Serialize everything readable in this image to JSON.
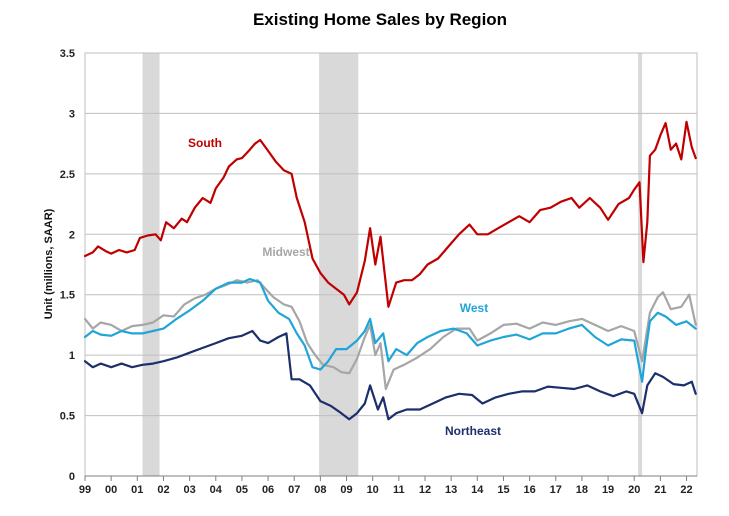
{
  "chart_data": {
    "type": "line",
    "title": "Existing Home Sales by Region",
    "xlabel": "",
    "ylabel": "Unit (millions, SAAR)",
    "ylim": [
      0,
      3.5
    ],
    "xlim": [
      1999.0,
      2022.4
    ],
    "yticks": [
      "0",
      "0.5",
      "1",
      "1.5",
      "2",
      "2.5",
      "3",
      "3.5"
    ],
    "xticks": [
      "99",
      "00",
      "01",
      "02",
      "03",
      "04",
      "05",
      "06",
      "07",
      "08",
      "09",
      "10",
      "11",
      "12",
      "13",
      "14",
      "15",
      "16",
      "17",
      "18",
      "19",
      "20",
      "21",
      "22"
    ],
    "grid": "horizontal",
    "legend": "inline labels",
    "recessions": [
      [
        2001.2,
        2001.85
      ],
      [
        2007.95,
        2009.45
      ],
      [
        2020.15,
        2020.3
      ]
    ],
    "series": [
      {
        "name": "South",
        "color": "#c00000",
        "points": [
          [
            1999.0,
            1.82
          ],
          [
            1999.3,
            1.85
          ],
          [
            1999.5,
            1.9
          ],
          [
            1999.8,
            1.86
          ],
          [
            2000.0,
            1.84
          ],
          [
            2000.3,
            1.87
          ],
          [
            2000.6,
            1.85
          ],
          [
            2000.9,
            1.87
          ],
          [
            2001.1,
            1.97
          ],
          [
            2001.4,
            1.99
          ],
          [
            2001.7,
            2.0
          ],
          [
            2001.9,
            1.95
          ],
          [
            2002.1,
            2.1
          ],
          [
            2002.4,
            2.05
          ],
          [
            2002.7,
            2.13
          ],
          [
            2002.9,
            2.1
          ],
          [
            2003.2,
            2.22
          ],
          [
            2003.5,
            2.3
          ],
          [
            2003.8,
            2.26
          ],
          [
            2004.0,
            2.38
          ],
          [
            2004.3,
            2.47
          ],
          [
            2004.5,
            2.56
          ],
          [
            2004.8,
            2.62
          ],
          [
            2005.0,
            2.63
          ],
          [
            2005.3,
            2.7
          ],
          [
            2005.5,
            2.75
          ],
          [
            2005.7,
            2.78
          ],
          [
            2006.0,
            2.69
          ],
          [
            2006.3,
            2.6
          ],
          [
            2006.6,
            2.53
          ],
          [
            2006.9,
            2.5
          ],
          [
            2007.1,
            2.3
          ],
          [
            2007.4,
            2.1
          ],
          [
            2007.7,
            1.8
          ],
          [
            2008.0,
            1.68
          ],
          [
            2008.3,
            1.6
          ],
          [
            2008.6,
            1.55
          ],
          [
            2008.9,
            1.5
          ],
          [
            2009.1,
            1.42
          ],
          [
            2009.4,
            1.52
          ],
          [
            2009.7,
            1.78
          ],
          [
            2009.9,
            2.05
          ],
          [
            2010.1,
            1.75
          ],
          [
            2010.3,
            1.98
          ],
          [
            2010.6,
            1.4
          ],
          [
            2010.9,
            1.6
          ],
          [
            2011.2,
            1.62
          ],
          [
            2011.5,
            1.62
          ],
          [
            2011.8,
            1.67
          ],
          [
            2012.1,
            1.75
          ],
          [
            2012.5,
            1.8
          ],
          [
            2012.9,
            1.9
          ],
          [
            2013.3,
            2.0
          ],
          [
            2013.7,
            2.08
          ],
          [
            2014.0,
            2.0
          ],
          [
            2014.4,
            2.0
          ],
          [
            2014.8,
            2.05
          ],
          [
            2015.2,
            2.1
          ],
          [
            2015.6,
            2.15
          ],
          [
            2016.0,
            2.1
          ],
          [
            2016.4,
            2.2
          ],
          [
            2016.8,
            2.22
          ],
          [
            2017.2,
            2.27
          ],
          [
            2017.6,
            2.3
          ],
          [
            2017.9,
            2.22
          ],
          [
            2018.3,
            2.3
          ],
          [
            2018.7,
            2.22
          ],
          [
            2019.0,
            2.12
          ],
          [
            2019.4,
            2.25
          ],
          [
            2019.8,
            2.3
          ],
          [
            2020.0,
            2.37
          ],
          [
            2020.2,
            2.43
          ],
          [
            2020.35,
            1.77
          ],
          [
            2020.5,
            2.1
          ],
          [
            2020.6,
            2.65
          ],
          [
            2020.8,
            2.7
          ],
          [
            2021.0,
            2.82
          ],
          [
            2021.2,
            2.92
          ],
          [
            2021.4,
            2.7
          ],
          [
            2021.6,
            2.75
          ],
          [
            2021.8,
            2.62
          ],
          [
            2022.0,
            2.93
          ],
          [
            2022.2,
            2.72
          ],
          [
            2022.35,
            2.63
          ]
        ]
      },
      {
        "name": "Midwest",
        "color": "#a6a6a6",
        "points": [
          [
            1999.0,
            1.3
          ],
          [
            1999.3,
            1.22
          ],
          [
            1999.6,
            1.27
          ],
          [
            2000.0,
            1.25
          ],
          [
            2000.4,
            1.2
          ],
          [
            2000.8,
            1.24
          ],
          [
            2001.2,
            1.25
          ],
          [
            2001.6,
            1.27
          ],
          [
            2002.0,
            1.33
          ],
          [
            2002.4,
            1.32
          ],
          [
            2002.8,
            1.42
          ],
          [
            2003.2,
            1.47
          ],
          [
            2003.6,
            1.5
          ],
          [
            2004.0,
            1.55
          ],
          [
            2004.4,
            1.58
          ],
          [
            2004.8,
            1.62
          ],
          [
            2005.2,
            1.6
          ],
          [
            2005.6,
            1.62
          ],
          [
            2005.9,
            1.55
          ],
          [
            2006.2,
            1.48
          ],
          [
            2006.6,
            1.42
          ],
          [
            2006.9,
            1.4
          ],
          [
            2007.2,
            1.28
          ],
          [
            2007.5,
            1.1
          ],
          [
            2007.8,
            1.0
          ],
          [
            2008.1,
            0.92
          ],
          [
            2008.5,
            0.9
          ],
          [
            2008.8,
            0.86
          ],
          [
            2009.1,
            0.85
          ],
          [
            2009.4,
            0.97
          ],
          [
            2009.7,
            1.15
          ],
          [
            2009.9,
            1.25
          ],
          [
            2010.1,
            1.0
          ],
          [
            2010.3,
            1.1
          ],
          [
            2010.5,
            0.72
          ],
          [
            2010.8,
            0.88
          ],
          [
            2011.2,
            0.92
          ],
          [
            2011.7,
            0.98
          ],
          [
            2012.2,
            1.05
          ],
          [
            2012.7,
            1.15
          ],
          [
            2013.2,
            1.22
          ],
          [
            2013.7,
            1.22
          ],
          [
            2014.0,
            1.12
          ],
          [
            2014.5,
            1.18
          ],
          [
            2015.0,
            1.25
          ],
          [
            2015.5,
            1.26
          ],
          [
            2016.0,
            1.22
          ],
          [
            2016.5,
            1.27
          ],
          [
            2017.0,
            1.25
          ],
          [
            2017.5,
            1.28
          ],
          [
            2018.0,
            1.3
          ],
          [
            2018.5,
            1.25
          ],
          [
            2019.0,
            1.2
          ],
          [
            2019.5,
            1.24
          ],
          [
            2020.0,
            1.2
          ],
          [
            2020.3,
            0.95
          ],
          [
            2020.45,
            1.15
          ],
          [
            2020.6,
            1.35
          ],
          [
            2020.9,
            1.48
          ],
          [
            2021.1,
            1.52
          ],
          [
            2021.4,
            1.38
          ],
          [
            2021.8,
            1.4
          ],
          [
            2022.1,
            1.5
          ],
          [
            2022.35,
            1.25
          ]
        ]
      },
      {
        "name": "West",
        "color": "#1fa5d8",
        "points": [
          [
            1999.0,
            1.15
          ],
          [
            1999.3,
            1.2
          ],
          [
            1999.6,
            1.17
          ],
          [
            2000.0,
            1.16
          ],
          [
            2000.4,
            1.2
          ],
          [
            2000.8,
            1.18
          ],
          [
            2001.2,
            1.18
          ],
          [
            2001.6,
            1.2
          ],
          [
            2002.0,
            1.22
          ],
          [
            2002.5,
            1.3
          ],
          [
            2003.0,
            1.37
          ],
          [
            2003.5,
            1.45
          ],
          [
            2004.0,
            1.55
          ],
          [
            2004.5,
            1.6
          ],
          [
            2005.0,
            1.6
          ],
          [
            2005.3,
            1.63
          ],
          [
            2005.7,
            1.6
          ],
          [
            2006.0,
            1.45
          ],
          [
            2006.4,
            1.35
          ],
          [
            2006.8,
            1.3
          ],
          [
            2007.1,
            1.18
          ],
          [
            2007.4,
            1.08
          ],
          [
            2007.7,
            0.9
          ],
          [
            2008.0,
            0.88
          ],
          [
            2008.3,
            0.95
          ],
          [
            2008.6,
            1.05
          ],
          [
            2009.0,
            1.05
          ],
          [
            2009.4,
            1.12
          ],
          [
            2009.7,
            1.2
          ],
          [
            2009.9,
            1.3
          ],
          [
            2010.1,
            1.1
          ],
          [
            2010.4,
            1.18
          ],
          [
            2010.6,
            0.95
          ],
          [
            2010.9,
            1.05
          ],
          [
            2011.3,
            1.0
          ],
          [
            2011.7,
            1.1
          ],
          [
            2012.1,
            1.15
          ],
          [
            2012.6,
            1.2
          ],
          [
            2013.1,
            1.22
          ],
          [
            2013.6,
            1.18
          ],
          [
            2014.0,
            1.08
          ],
          [
            2014.5,
            1.12
          ],
          [
            2015.0,
            1.15
          ],
          [
            2015.5,
            1.17
          ],
          [
            2016.0,
            1.13
          ],
          [
            2016.5,
            1.18
          ],
          [
            2017.0,
            1.18
          ],
          [
            2017.5,
            1.22
          ],
          [
            2018.0,
            1.25
          ],
          [
            2018.5,
            1.15
          ],
          [
            2019.0,
            1.08
          ],
          [
            2019.5,
            1.13
          ],
          [
            2020.0,
            1.12
          ],
          [
            2020.3,
            0.78
          ],
          [
            2020.45,
            1.05
          ],
          [
            2020.6,
            1.28
          ],
          [
            2020.9,
            1.35
          ],
          [
            2021.2,
            1.32
          ],
          [
            2021.6,
            1.25
          ],
          [
            2022.0,
            1.28
          ],
          [
            2022.35,
            1.22
          ]
        ]
      },
      {
        "name": "Northeast",
        "color": "#1b2f6b",
        "points": [
          [
            1999.0,
            0.95
          ],
          [
            1999.3,
            0.9
          ],
          [
            1999.6,
            0.93
          ],
          [
            2000.0,
            0.9
          ],
          [
            2000.4,
            0.93
          ],
          [
            2000.8,
            0.9
          ],
          [
            2001.2,
            0.92
          ],
          [
            2001.6,
            0.93
          ],
          [
            2002.0,
            0.95
          ],
          [
            2002.5,
            0.98
          ],
          [
            2003.0,
            1.02
          ],
          [
            2003.5,
            1.06
          ],
          [
            2004.0,
            1.1
          ],
          [
            2004.5,
            1.14
          ],
          [
            2005.0,
            1.16
          ],
          [
            2005.4,
            1.2
          ],
          [
            2005.7,
            1.12
          ],
          [
            2006.0,
            1.1
          ],
          [
            2006.4,
            1.15
          ],
          [
            2006.7,
            1.18
          ],
          [
            2006.9,
            0.8
          ],
          [
            2007.2,
            0.8
          ],
          [
            2007.6,
            0.75
          ],
          [
            2008.0,
            0.62
          ],
          [
            2008.4,
            0.58
          ],
          [
            2008.8,
            0.52
          ],
          [
            2009.1,
            0.47
          ],
          [
            2009.4,
            0.52
          ],
          [
            2009.7,
            0.6
          ],
          [
            2009.9,
            0.75
          ],
          [
            2010.2,
            0.55
          ],
          [
            2010.4,
            0.65
          ],
          [
            2010.6,
            0.47
          ],
          [
            2010.9,
            0.52
          ],
          [
            2011.3,
            0.55
          ],
          [
            2011.8,
            0.55
          ],
          [
            2012.3,
            0.6
          ],
          [
            2012.8,
            0.65
          ],
          [
            2013.3,
            0.68
          ],
          [
            2013.8,
            0.67
          ],
          [
            2014.2,
            0.6
          ],
          [
            2014.7,
            0.65
          ],
          [
            2015.2,
            0.68
          ],
          [
            2015.7,
            0.7
          ],
          [
            2016.2,
            0.7
          ],
          [
            2016.7,
            0.74
          ],
          [
            2017.2,
            0.73
          ],
          [
            2017.7,
            0.72
          ],
          [
            2018.2,
            0.75
          ],
          [
            2018.7,
            0.7
          ],
          [
            2019.2,
            0.66
          ],
          [
            2019.7,
            0.7
          ],
          [
            2020.0,
            0.68
          ],
          [
            2020.3,
            0.52
          ],
          [
            2020.5,
            0.75
          ],
          [
            2020.8,
            0.85
          ],
          [
            2021.1,
            0.82
          ],
          [
            2021.5,
            0.76
          ],
          [
            2021.9,
            0.75
          ],
          [
            2022.2,
            0.78
          ],
          [
            2022.35,
            0.68
          ]
        ]
      }
    ],
    "annotations": [
      "South",
      "Midwest",
      "West",
      "Northeast"
    ]
  }
}
